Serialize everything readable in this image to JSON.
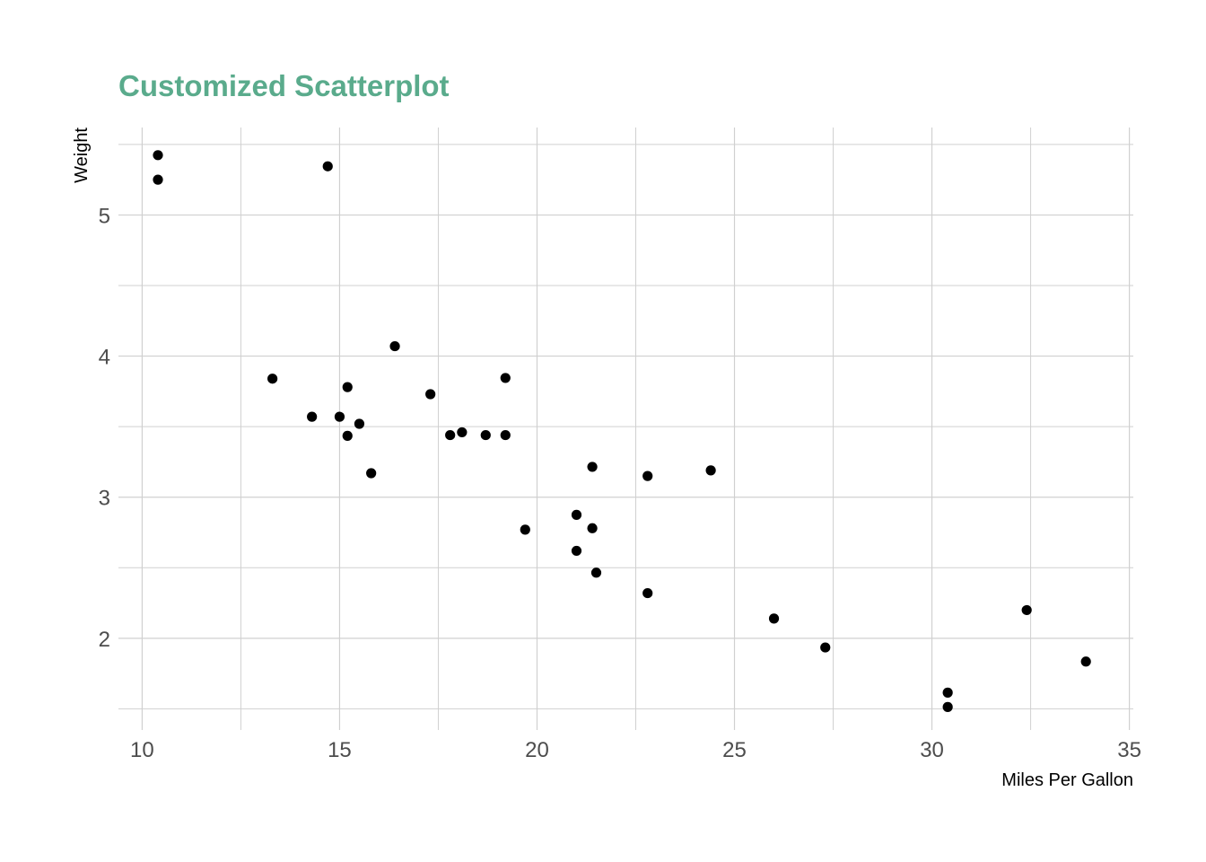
{
  "chart_data": {
    "type": "scatter",
    "title": "Customized Scatterplot",
    "xlabel": "Miles Per Gallon",
    "ylabel": "Weight",
    "xlim": [
      9.4,
      35.1
    ],
    "ylim": [
      1.35,
      5.62
    ],
    "x_ticks": [
      10,
      15,
      20,
      25,
      30,
      35
    ],
    "y_ticks": [
      2,
      3,
      4,
      5
    ],
    "x_minor": [
      12.5,
      17.5,
      22.5,
      27.5,
      32.5
    ],
    "y_minor": [
      1.5,
      2.5,
      3.5,
      4.5,
      5.5
    ],
    "grid": true,
    "point_color": "#000000",
    "title_color": "#5aab8c",
    "points": [
      {
        "x": 21.0,
        "y": 2.62
      },
      {
        "x": 21.0,
        "y": 2.875
      },
      {
        "x": 22.8,
        "y": 2.32
      },
      {
        "x": 21.4,
        "y": 3.215
      },
      {
        "x": 18.7,
        "y": 3.44
      },
      {
        "x": 18.1,
        "y": 3.46
      },
      {
        "x": 14.3,
        "y": 3.57
      },
      {
        "x": 24.4,
        "y": 3.19
      },
      {
        "x": 22.8,
        "y": 3.15
      },
      {
        "x": 19.2,
        "y": 3.44
      },
      {
        "x": 17.8,
        "y": 3.44
      },
      {
        "x": 16.4,
        "y": 4.07
      },
      {
        "x": 17.3,
        "y": 3.73
      },
      {
        "x": 15.2,
        "y": 3.78
      },
      {
        "x": 10.4,
        "y": 5.25
      },
      {
        "x": 10.4,
        "y": 5.424
      },
      {
        "x": 14.7,
        "y": 5.345
      },
      {
        "x": 32.4,
        "y": 2.2
      },
      {
        "x": 30.4,
        "y": 1.615
      },
      {
        "x": 33.9,
        "y": 1.835
      },
      {
        "x": 21.5,
        "y": 2.465
      },
      {
        "x": 15.5,
        "y": 3.52
      },
      {
        "x": 15.2,
        "y": 3.435
      },
      {
        "x": 13.3,
        "y": 3.84
      },
      {
        "x": 19.2,
        "y": 3.845
      },
      {
        "x": 27.3,
        "y": 1.935
      },
      {
        "x": 26.0,
        "y": 2.14
      },
      {
        "x": 30.4,
        "y": 1.513
      },
      {
        "x": 15.8,
        "y": 3.17
      },
      {
        "x": 19.7,
        "y": 2.77
      },
      {
        "x": 15.0,
        "y": 3.57
      },
      {
        "x": 21.4,
        "y": 2.78
      }
    ]
  }
}
